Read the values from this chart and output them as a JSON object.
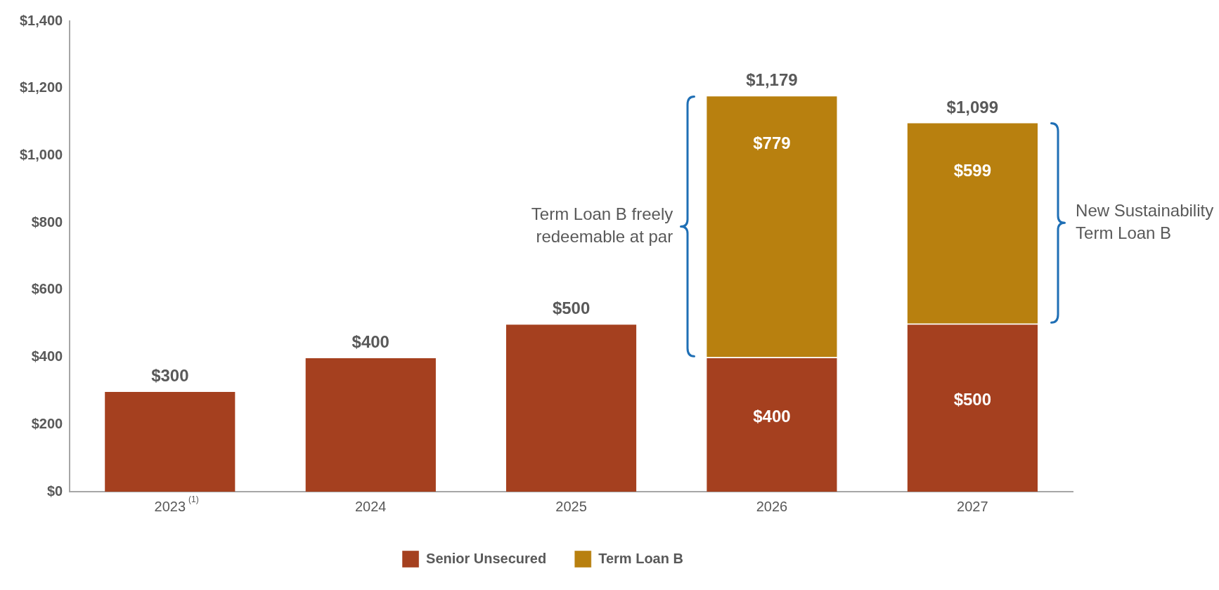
{
  "chart_data": {
    "type": "bar",
    "stacked": true,
    "categories": [
      "2023$^{(1)}$",
      "2024",
      "2025",
      "2026",
      "2027"
    ],
    "series": [
      {
        "name": "Senior Unsecured",
        "color": "#a5401f",
        "values": [
          300,
          400,
          500,
          400,
          500
        ],
        "value_labels": [
          null,
          null,
          null,
          "$400",
          "$500"
        ]
      },
      {
        "name": "Term Loan B",
        "color": "#b8800f",
        "values": [
          null,
          null,
          null,
          779,
          599
        ],
        "value_labels": [
          null,
          null,
          null,
          "$779",
          "$599"
        ]
      }
    ],
    "totals": [
      "$300",
      "$400",
      "$500",
      "$1,179",
      "$1,099"
    ],
    "ylim": [
      0,
      1400
    ],
    "yticks": [
      {
        "value": 0,
        "label": "$0"
      },
      {
        "value": 200,
        "label": "$200"
      },
      {
        "value": 400,
        "label": "$400"
      },
      {
        "value": 600,
        "label": "$600"
      },
      {
        "value": 800,
        "label": "$800"
      },
      {
        "value": 1000,
        "label": "$1,000"
      },
      {
        "value": 1200,
        "label": "$1,200"
      },
      {
        "value": 1400,
        "label": "$1,400"
      }
    ],
    "grid": false,
    "legend": "bottom",
    "annotations": [
      "Term Loan B freely redeemable at par",
      "New Sustainability Term Loan B"
    ]
  }
}
